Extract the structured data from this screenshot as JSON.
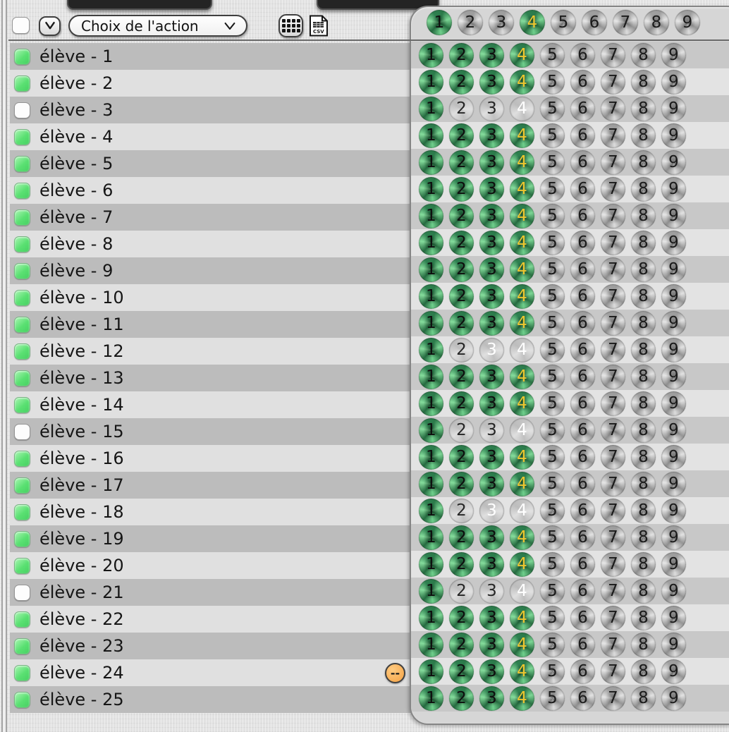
{
  "toolbar": {
    "select_all_checked": false,
    "action_select_label": "Choix de l'action",
    "csv_label": "CSV",
    "icons": [
      "chevron-down-icon",
      "grid-icon",
      "csv-file-icon"
    ]
  },
  "levels_header": {
    "numbers": [
      1,
      2,
      3,
      4,
      5,
      6,
      7,
      8,
      9
    ],
    "states": [
      "green",
      "silver",
      "silver",
      "green-gold",
      "silver",
      "silver",
      "silver",
      "silver",
      "silver"
    ]
  },
  "badge": {
    "label": "--",
    "attached_to": "élève - 24"
  },
  "colors": {
    "checkbox_on": "#5ae072",
    "level_done": "#3f9e62",
    "level_current_number": "#eec62f",
    "level_locked": "#b9b9b9",
    "badge": "#f5a243"
  },
  "students": [
    {
      "name": "élève - 1",
      "checkbox": "green",
      "levels": [
        "green",
        "green",
        "green",
        "green-gold",
        "silver",
        "silver",
        "silver",
        "silver",
        "silver"
      ]
    },
    {
      "name": "élève - 2",
      "checkbox": "green",
      "levels": [
        "green",
        "green",
        "green",
        "green-gold",
        "silver",
        "silver",
        "silver",
        "silver",
        "silver"
      ]
    },
    {
      "name": "élève - 3",
      "checkbox": "white",
      "levels": [
        "green",
        "gray",
        "gray",
        "gray-white",
        "silver",
        "silver",
        "silver",
        "silver",
        "silver"
      ]
    },
    {
      "name": "élève - 4",
      "checkbox": "green",
      "levels": [
        "green",
        "green",
        "green",
        "green-gold",
        "silver",
        "silver",
        "silver",
        "silver",
        "silver"
      ]
    },
    {
      "name": "élève - 5",
      "checkbox": "green",
      "levels": [
        "green",
        "green",
        "green",
        "green-gold",
        "silver",
        "silver",
        "silver",
        "silver",
        "silver"
      ]
    },
    {
      "name": "élève - 6",
      "checkbox": "green",
      "levels": [
        "green",
        "green",
        "green",
        "green-gold",
        "silver",
        "silver",
        "silver",
        "silver",
        "silver"
      ]
    },
    {
      "name": "élève - 7",
      "checkbox": "green",
      "levels": [
        "green",
        "green",
        "green",
        "green-gold",
        "silver",
        "silver",
        "silver",
        "silver",
        "silver"
      ]
    },
    {
      "name": "élève - 8",
      "checkbox": "green",
      "levels": [
        "green",
        "green",
        "green",
        "green-gold",
        "silver",
        "silver",
        "silver",
        "silver",
        "silver"
      ]
    },
    {
      "name": "élève - 9",
      "checkbox": "green",
      "levels": [
        "green",
        "green",
        "green",
        "green-gold",
        "silver",
        "silver",
        "silver",
        "silver",
        "silver"
      ]
    },
    {
      "name": "élève - 10",
      "checkbox": "green",
      "levels": [
        "green",
        "green",
        "green",
        "green-gold",
        "silver",
        "silver",
        "silver",
        "silver",
        "silver"
      ]
    },
    {
      "name": "élève - 11",
      "checkbox": "green",
      "levels": [
        "green",
        "green",
        "green",
        "green-gold",
        "silver",
        "silver",
        "silver",
        "silver",
        "silver"
      ]
    },
    {
      "name": "élève - 12",
      "checkbox": "green",
      "levels": [
        "green",
        "gray",
        "gray-white",
        "gray-white",
        "silver",
        "silver",
        "silver",
        "silver",
        "silver"
      ]
    },
    {
      "name": "élève - 13",
      "checkbox": "green",
      "levels": [
        "green",
        "green",
        "green",
        "green-gold",
        "silver",
        "silver",
        "silver",
        "silver",
        "silver"
      ]
    },
    {
      "name": "élève - 14",
      "checkbox": "green",
      "levels": [
        "green",
        "green",
        "green",
        "green-gold",
        "silver",
        "silver",
        "silver",
        "silver",
        "silver"
      ]
    },
    {
      "name": "élève - 15",
      "checkbox": "white",
      "levels": [
        "green",
        "gray",
        "gray",
        "gray-white",
        "silver",
        "silver",
        "silver",
        "silver",
        "silver"
      ]
    },
    {
      "name": "élève - 16",
      "checkbox": "green",
      "levels": [
        "green",
        "green",
        "green",
        "green-gold",
        "silver",
        "silver",
        "silver",
        "silver",
        "silver"
      ]
    },
    {
      "name": "élève - 17",
      "checkbox": "green",
      "levels": [
        "green",
        "green",
        "green",
        "green-gold",
        "silver",
        "silver",
        "silver",
        "silver",
        "silver"
      ]
    },
    {
      "name": "élève - 18",
      "checkbox": "green",
      "levels": [
        "green",
        "gray",
        "gray-white",
        "gray-white",
        "silver",
        "silver",
        "silver",
        "silver",
        "silver"
      ]
    },
    {
      "name": "élève - 19",
      "checkbox": "green",
      "levels": [
        "green",
        "green",
        "green",
        "green-gold",
        "silver",
        "silver",
        "silver",
        "silver",
        "silver"
      ]
    },
    {
      "name": "élève - 20",
      "checkbox": "green",
      "levels": [
        "green",
        "green",
        "green",
        "green-gold",
        "silver",
        "silver",
        "silver",
        "silver",
        "silver"
      ]
    },
    {
      "name": "élève - 21",
      "checkbox": "white",
      "levels": [
        "green",
        "gray",
        "gray",
        "gray-white",
        "silver",
        "silver",
        "silver",
        "silver",
        "silver"
      ]
    },
    {
      "name": "élève - 22",
      "checkbox": "green",
      "levels": [
        "green",
        "green",
        "green",
        "green-gold",
        "silver",
        "silver",
        "silver",
        "silver",
        "silver"
      ]
    },
    {
      "name": "élève - 23",
      "checkbox": "green",
      "levels": [
        "green",
        "green",
        "green",
        "green-gold",
        "silver",
        "silver",
        "silver",
        "silver",
        "silver"
      ]
    },
    {
      "name": "élève - 24",
      "checkbox": "green",
      "levels": [
        "green",
        "green",
        "green",
        "green-gold",
        "silver",
        "silver",
        "silver",
        "silver",
        "silver"
      ]
    },
    {
      "name": "élève - 25",
      "checkbox": "green",
      "levels": [
        "green",
        "green",
        "green",
        "green-gold",
        "silver",
        "silver",
        "silver",
        "silver",
        "silver"
      ]
    }
  ]
}
